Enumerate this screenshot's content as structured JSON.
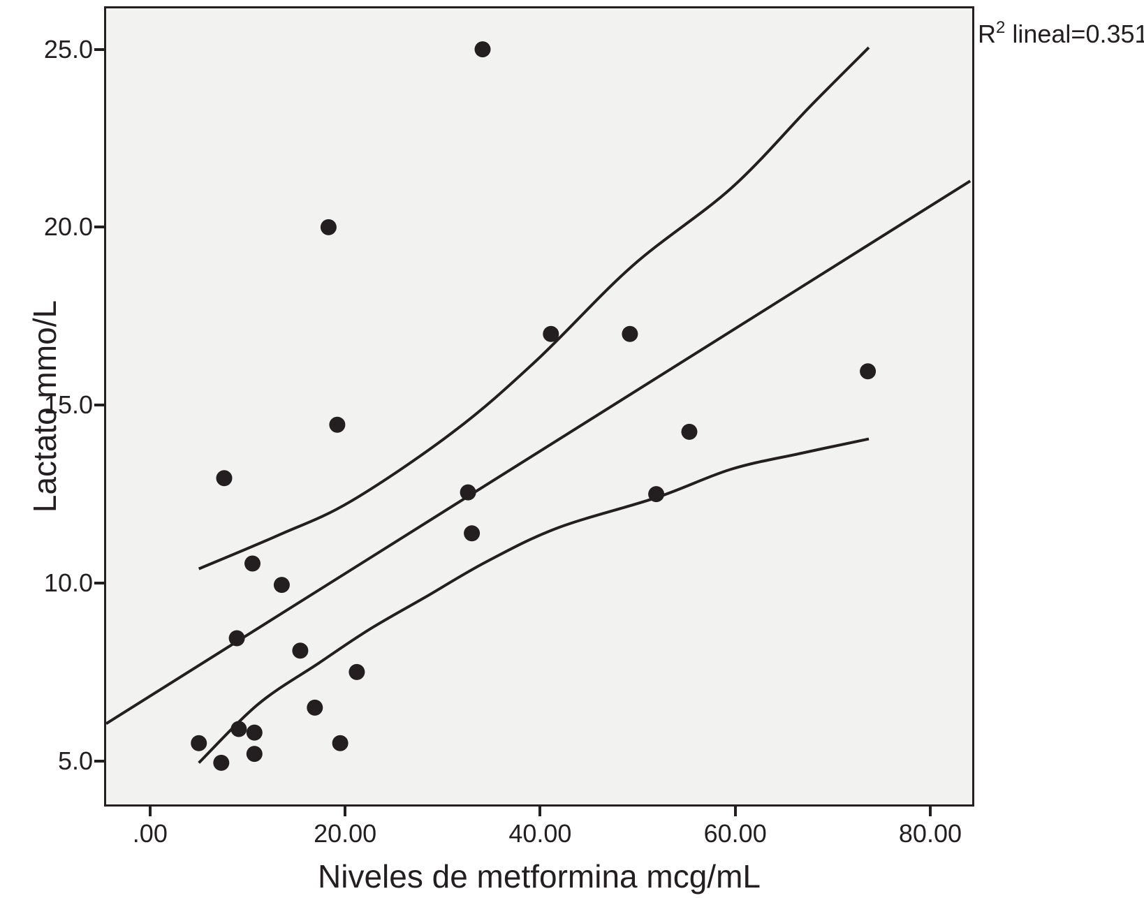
{
  "chart_data": {
    "type": "scatter",
    "title": "",
    "xlabel": "Niveles de metformina mcg/mL",
    "ylabel": "Lactato mmo/L",
    "annotation": {
      "base": "R",
      "sup": "2",
      "rest": " lineal=0.351"
    },
    "annotation_text": "R2 lineal=0.351",
    "x_ticks": {
      "values": [
        0,
        20,
        40,
        60,
        80
      ],
      "labels": [
        ".00",
        "20.00",
        "40.00",
        "60.00",
        "80.00"
      ]
    },
    "y_ticks": {
      "values": [
        5,
        10,
        15,
        20,
        25
      ],
      "labels": [
        "5.0",
        "10.0",
        "15.0",
        "20.0",
        "25.0"
      ]
    },
    "xlim": [
      -4.5,
      84.3
    ],
    "ylim": [
      3.78,
      26.15
    ],
    "grid": false,
    "legend": "none",
    "points": [
      [
        34.1,
        25.0
      ],
      [
        18.3,
        20.0
      ],
      [
        41.1,
        17.0
      ],
      [
        49.2,
        17.0
      ],
      [
        73.6,
        15.95
      ],
      [
        19.2,
        14.45
      ],
      [
        55.3,
        14.25
      ],
      [
        7.6,
        12.95
      ],
      [
        32.6,
        12.55
      ],
      [
        51.9,
        12.5
      ],
      [
        33.0,
        11.4
      ],
      [
        10.5,
        10.55
      ],
      [
        13.5,
        9.95
      ],
      [
        8.9,
        8.45
      ],
      [
        15.4,
        8.1
      ],
      [
        21.2,
        7.5
      ],
      [
        16.9,
        6.5
      ],
      [
        9.1,
        5.9
      ],
      [
        10.7,
        5.8
      ],
      [
        5.0,
        5.5
      ],
      [
        19.5,
        5.5
      ],
      [
        10.7,
        5.2
      ],
      [
        7.3,
        4.95
      ]
    ],
    "fit_line": {
      "x1": -4.5,
      "y1": 6.05,
      "x2": 84.1,
      "y2": 21.3
    },
    "ci_upper": [
      [
        5.0,
        10.4
      ],
      [
        13.2,
        11.35
      ],
      [
        20.6,
        12.3
      ],
      [
        31.1,
        14.25
      ],
      [
        39.6,
        16.25
      ],
      [
        49.4,
        18.9
      ],
      [
        59.6,
        21.1
      ],
      [
        67.7,
        23.4
      ],
      [
        73.7,
        25.05
      ]
    ],
    "ci_lower": [
      [
        5.0,
        4.95
      ],
      [
        11.1,
        6.6
      ],
      [
        17.3,
        7.75
      ],
      [
        22.5,
        8.7
      ],
      [
        28.2,
        9.6
      ],
      [
        34.5,
        10.6
      ],
      [
        41.8,
        11.55
      ],
      [
        51.9,
        12.4
      ],
      [
        59.6,
        13.2
      ],
      [
        66.8,
        13.65
      ],
      [
        73.7,
        14.05
      ]
    ],
    "colors": {
      "ink": "#231f20",
      "plot_bg": "#f2f2f0",
      "page_bg": "#ffffff"
    }
  }
}
